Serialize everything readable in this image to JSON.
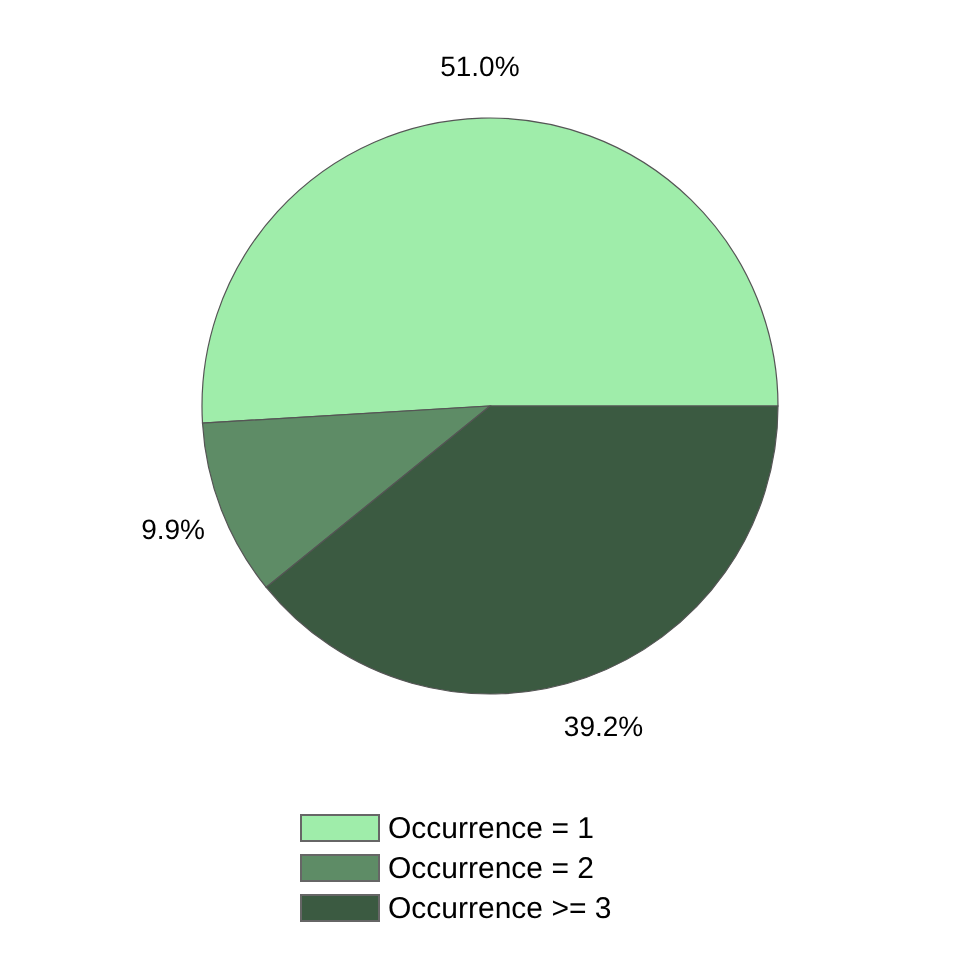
{
  "chart_data": {
    "type": "pie",
    "categories": [
      "Occurrence = 1",
      "Occurrence = 2",
      "Occurrence >= 3"
    ],
    "values": [
      51.0,
      9.9,
      39.2
    ],
    "colors": [
      "#9fedaa",
      "#5e8c66",
      "#3b5a41"
    ],
    "value_labels": [
      "51.0%",
      "9.9%",
      "39.2%"
    ],
    "legend": "bottom"
  }
}
